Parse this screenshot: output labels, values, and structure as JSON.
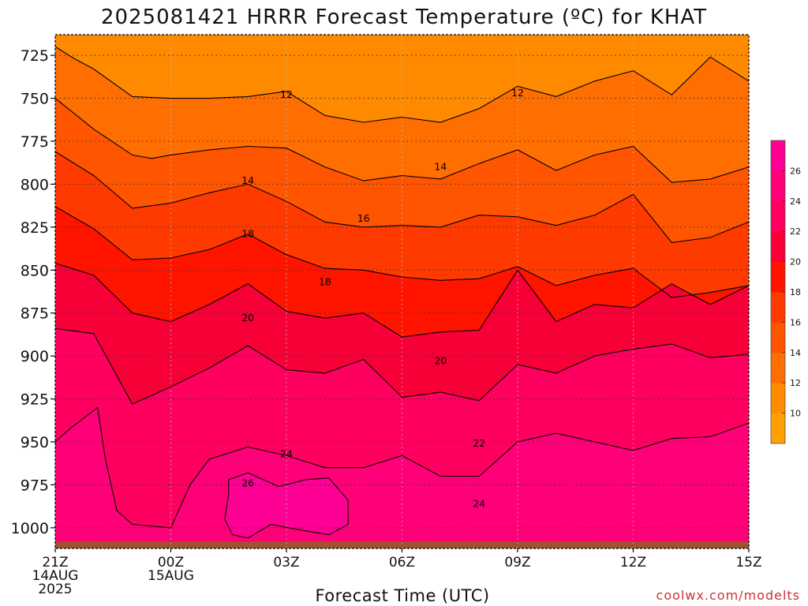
{
  "chart_data": {
    "type": "heatmap",
    "title": "2025081421 HRRR Forecast Temperature (ºC) for KHAT",
    "xlabel": "Forecast Time (UTC)",
    "ylabel": "",
    "credit": "coolwx.com/modelts",
    "y_scale": "pressure (hPa), decreasing upward",
    "ylim": [
      1012,
      713
    ],
    "y_ticks": [
      "725",
      "750",
      "775",
      "800",
      "825",
      "850",
      "875",
      "900",
      "925",
      "950",
      "975",
      "1000"
    ],
    "x_ticks": [
      {
        "hour": 0,
        "label": [
          "21Z",
          "14AUG",
          "2025"
        ]
      },
      {
        "hour": 3,
        "label": [
          "00Z",
          "15AUG"
        ]
      },
      {
        "hour": 6,
        "label": [
          "03Z"
        ]
      },
      {
        "hour": 9,
        "label": [
          "06Z"
        ]
      },
      {
        "hour": 12,
        "label": [
          "09Z"
        ]
      },
      {
        "hour": 15,
        "label": [
          "12Z"
        ]
      },
      {
        "hour": 18,
        "label": [
          "15Z"
        ]
      }
    ],
    "x_range_hours": [
      0,
      18
    ],
    "grid": true,
    "colorbar": {
      "ticks": [
        "10",
        "12",
        "14",
        "16",
        "18",
        "20",
        "22",
        "24",
        "26"
      ],
      "levels": [
        8,
        10,
        12,
        14,
        16,
        18,
        20,
        22,
        24,
        26,
        28
      ],
      "colors": [
        "#ffa000",
        "#ff8a00",
        "#ff6e00",
        "#ff5400",
        "#ff3a00",
        "#ff1400",
        "#f70038",
        "#ff0060",
        "#ff0078",
        "#ff0094"
      ]
    },
    "contour_labels": [
      {
        "label": "12",
        "hour": 6.0,
        "p": 748
      },
      {
        "label": "12",
        "hour": 12.0,
        "p": 747
      },
      {
        "label": "14",
        "hour": 5.0,
        "p": 798
      },
      {
        "label": "14",
        "hour": 10.0,
        "p": 790
      },
      {
        "label": "16",
        "hour": 8.0,
        "p": 820
      },
      {
        "label": "18",
        "hour": 5.0,
        "p": 829
      },
      {
        "label": "18",
        "hour": 7.0,
        "p": 857
      },
      {
        "label": "20",
        "hour": 5.0,
        "p": 878
      },
      {
        "label": "20",
        "hour": 10.0,
        "p": 903
      },
      {
        "label": "22",
        "hour": 11.0,
        "p": 951
      },
      {
        "label": "24",
        "hour": 6.0,
        "p": 957
      },
      {
        "label": "24",
        "hour": 11.0,
        "p": 986
      },
      {
        "label": "26",
        "hour": 5.0,
        "p": 974
      }
    ],
    "series": [
      {
        "level": 12,
        "hours": [
          0,
          0.5,
          1,
          2,
          3,
          4,
          5,
          6,
          7,
          8,
          9,
          10,
          11,
          12,
          13,
          14,
          15,
          16,
          17,
          18
        ],
        "p": [
          720,
          727,
          733,
          749,
          750,
          750,
          749,
          746,
          760,
          764,
          761,
          764,
          756,
          743,
          749,
          740,
          734,
          748,
          726,
          740
        ]
      },
      {
        "level": 14,
        "hours": [
          0,
          1,
          2,
          2.5,
          3,
          4,
          5,
          6,
          7,
          8,
          9,
          10,
          11,
          12,
          13,
          14,
          15,
          16,
          17,
          18
        ],
        "p": [
          750,
          768,
          783,
          785,
          783,
          780,
          778,
          779,
          790,
          798,
          795,
          797,
          788,
          780,
          792,
          783,
          778,
          799,
          797,
          790
        ]
      },
      {
        "level": 16,
        "hours": [
          0,
          1,
          2,
          3,
          4,
          5,
          6,
          7,
          8,
          9,
          10,
          11,
          12,
          13,
          14,
          15,
          16,
          17,
          18
        ],
        "p": [
          781,
          795,
          814,
          811,
          805,
          800,
          810,
          822,
          825,
          824,
          825,
          818,
          819,
          824,
          818,
          806,
          834,
          831,
          822
        ]
      },
      {
        "level": 18,
        "hours": [
          0,
          1,
          2,
          3,
          4,
          5,
          6,
          7,
          8,
          9,
          10,
          11,
          12,
          13,
          14,
          15,
          16,
          17,
          18
        ],
        "p": [
          813,
          826,
          844,
          843,
          838,
          829,
          841,
          849,
          850,
          854,
          856,
          855,
          848,
          859,
          853,
          849,
          866,
          863,
          859
        ]
      },
      {
        "level": 20,
        "hours": [
          0,
          1,
          2,
          3,
          4,
          5,
          6,
          7,
          8,
          9,
          10,
          11,
          12,
          13,
          14,
          15,
          16,
          17,
          18
        ],
        "p": [
          846,
          853,
          875,
          880,
          870,
          858,
          874,
          878,
          875,
          889,
          886,
          885,
          850,
          880,
          870,
          872,
          858,
          870,
          859
        ]
      },
      {
        "level": 22,
        "hours": [
          0,
          1,
          2,
          3,
          4,
          5,
          6,
          7,
          8,
          9,
          10,
          11,
          12,
          13,
          14,
          15,
          16,
          17,
          18
        ],
        "p": [
          884,
          887,
          928,
          918,
          907,
          894,
          908,
          910,
          902,
          924,
          921,
          926,
          905,
          910,
          900,
          896,
          893,
          901,
          899
        ]
      },
      {
        "level": 24,
        "hours": [
          0,
          0.4,
          1.1,
          1.3,
          1.6,
          2,
          3,
          3.2,
          3.5,
          4,
          5,
          6,
          7,
          8,
          9,
          10,
          11,
          12,
          13,
          14,
          15,
          16,
          17,
          18
        ],
        "p": [
          950,
          942,
          930,
          960,
          990,
          998,
          1000,
          990,
          975,
          960,
          953,
          958,
          965,
          965,
          958,
          970,
          970,
          950,
          945,
          950,
          955,
          948,
          947,
          939
        ]
      },
      {
        "level": 26,
        "hours": [
          4.5,
          5,
          5.8,
          6.5,
          7.1,
          7.6,
          7.6,
          7.1,
          6.3,
          5.6,
          5.0,
          4.6,
          4.4,
          4.5
        ],
        "p": [
          972,
          968,
          976,
          972,
          971,
          984,
          998,
          1004,
          1001,
          998,
          1006,
          1004,
          995,
          980
        ]
      }
    ],
    "surface": {
      "p": 1008,
      "color": "#a0522d"
    }
  }
}
